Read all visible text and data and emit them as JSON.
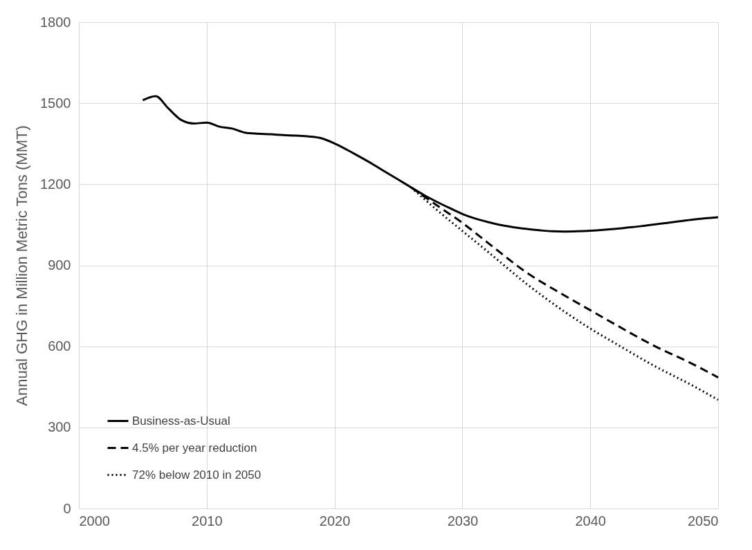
{
  "chart_data": {
    "type": "line",
    "ylabel": "Annual GHG in Million Metric Tons (MMT)",
    "xlim": [
      2000,
      2050
    ],
    "xticks": [
      2000,
      2010,
      2020,
      2030,
      2040,
      2050
    ],
    "ylim": [
      0,
      1800
    ],
    "yticks": [
      0,
      300,
      600,
      900,
      1200,
      1500,
      1800
    ],
    "grid": true,
    "legend": "bottom left",
    "marker": "none",
    "series": [
      {
        "name": "Business-as-Usual",
        "color": "#000000",
        "line_style": "solid",
        "x": [
          2005,
          2006,
          2007,
          2008,
          2009,
          2010,
          2011,
          2012,
          2013,
          2014,
          2015,
          2016,
          2017,
          2018,
          2019,
          2020,
          2021,
          2022,
          2023,
          2024,
          2025,
          2026,
          2027,
          2028,
          2029,
          2030,
          2031,
          2032,
          2033,
          2034,
          2035,
          2036,
          2037,
          2038,
          2039,
          2040,
          2041,
          2042,
          2043,
          2044,
          2045,
          2046,
          2047,
          2048,
          2049,
          2050
        ],
        "values": [
          1511,
          1526,
          1481,
          1438,
          1425,
          1428,
          1413,
          1406,
          1391,
          1387,
          1385,
          1382,
          1380,
          1377,
          1370,
          1351,
          1327,
          1301,
          1274,
          1245,
          1217,
          1188,
          1160,
          1135,
          1112,
          1090,
          1073,
          1060,
          1049,
          1041,
          1035,
          1030,
          1026,
          1025,
          1026,
          1028,
          1031,
          1035,
          1040,
          1045,
          1051,
          1057,
          1063,
          1069,
          1074,
          1078
        ]
      },
      {
        "name": "4.5% per year reduction",
        "color": "#000000",
        "line_style": "dashed",
        "x": [
          2026,
          2028,
          2030,
          2032,
          2035,
          2038,
          2040,
          2042,
          2045,
          2048,
          2050
        ],
        "values": [
          1188,
          1122,
          1057,
          983,
          874,
          788,
          734,
          680,
          602,
          535,
          485
        ]
      },
      {
        "name": "72% below 2010 in 2050",
        "color": "#000000",
        "line_style": "dotted",
        "x": [
          2026,
          2028,
          2030,
          2032,
          2035,
          2038,
          2040,
          2042,
          2045,
          2048,
          2050
        ],
        "values": [
          1188,
          1105,
          1027,
          950,
          832,
          728,
          666,
          610,
          528,
          455,
          402
        ]
      }
    ]
  }
}
